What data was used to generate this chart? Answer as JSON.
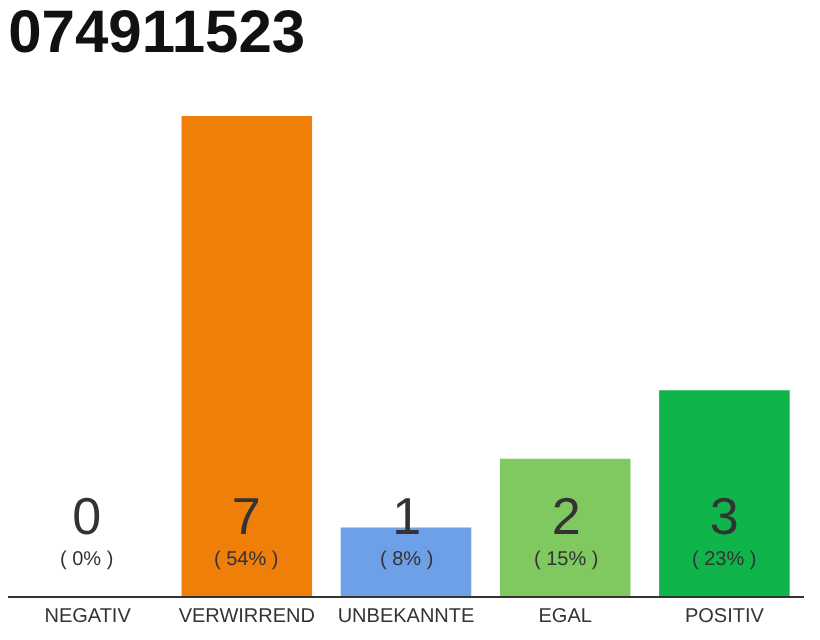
{
  "chart_data": {
    "type": "bar",
    "title": "074911523",
    "categories": [
      "NEGATIV",
      "VERWIRREND",
      "UNBEKANNTE",
      "EGAL",
      "POSITIV"
    ],
    "values": [
      0,
      7,
      1,
      2,
      3
    ],
    "value_labels": [
      "0\n( 0% )",
      "7\n( 54% )",
      "1\n( 8% )",
      "2\n( 15% )",
      "3\n( 23% )"
    ],
    "colors": [
      "#999999",
      "#f07f0a",
      "#6ea0e8",
      "#80c860",
      "#0fb54a"
    ],
    "ylim": [
      0,
      7
    ],
    "tick_labels": "x",
    "legend": false
  }
}
